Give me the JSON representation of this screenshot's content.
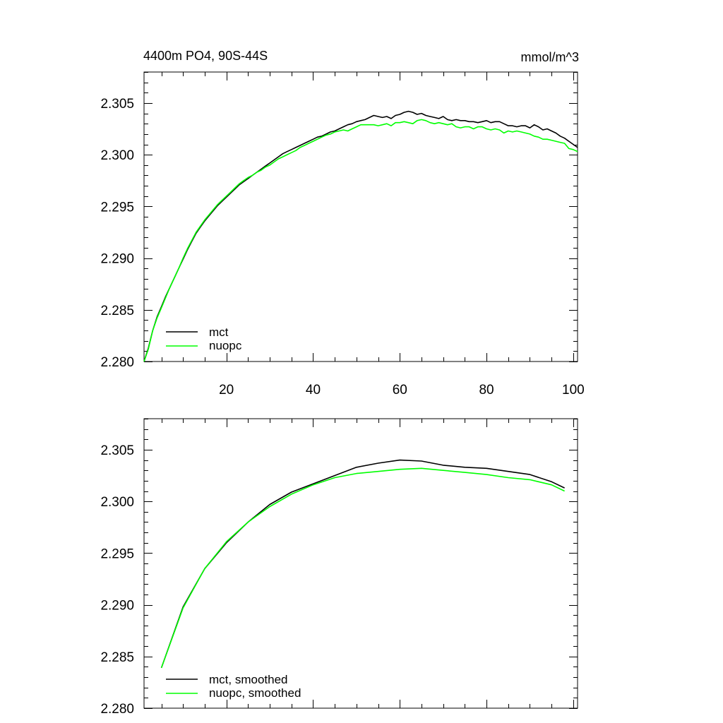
{
  "colors": {
    "mct": "#000000",
    "nuopc": "#00ff00"
  },
  "chart_data": [
    {
      "type": "line",
      "title": "4400m PO4, 90S-44S",
      "units": "mmol/m^3",
      "xlim": [
        1,
        101
      ],
      "ylim": [
        2.28,
        2.308
      ],
      "xticks": [
        "20",
        "40",
        "60",
        "80",
        "100"
      ],
      "yticks": [
        "2.280",
        "2.285",
        "2.290",
        "2.295",
        "2.300",
        "2.305"
      ],
      "legend_position": "bottom-left",
      "grid": false,
      "series": [
        {
          "name": "mct",
          "x": [
            1,
            2,
            3,
            4,
            5,
            6,
            7,
            8,
            9,
            10,
            11,
            12,
            13,
            14,
            15,
            16,
            17,
            18,
            19,
            20,
            21,
            22,
            23,
            24,
            25,
            26,
            27,
            28,
            29,
            30,
            31,
            32,
            33,
            34,
            35,
            36,
            37,
            38,
            39,
            40,
            41,
            42,
            43,
            44,
            45,
            46,
            47,
            48,
            49,
            50,
            51,
            52,
            53,
            54,
            55,
            56,
            57,
            58,
            59,
            60,
            61,
            62,
            63,
            64,
            65,
            66,
            67,
            68,
            69,
            70,
            71,
            72,
            73,
            74,
            75,
            76,
            77,
            78,
            79,
            80,
            81,
            82,
            83,
            84,
            85,
            86,
            87,
            88,
            89,
            90,
            91,
            92,
            93,
            94,
            95,
            96,
            97,
            98,
            99,
            100,
            101
          ],
          "values": [
            2.28,
            2.2813,
            2.283,
            2.2843,
            2.2853,
            2.2863,
            2.2872,
            2.2881,
            2.289,
            2.2899,
            2.2908,
            2.2916,
            2.2924,
            2.293,
            2.2936,
            2.2941,
            2.2946,
            2.2951,
            2.2955,
            2.2959,
            2.2963,
            2.2967,
            2.2971,
            2.2974,
            2.2977,
            2.298,
            2.2983,
            2.2986,
            2.2989,
            2.2992,
            2.2995,
            2.2998,
            2.3001,
            2.3003,
            2.3005,
            2.3007,
            2.3009,
            2.3011,
            2.3013,
            2.3015,
            2.3017,
            2.3018,
            2.302,
            2.3022,
            2.3023,
            2.3025,
            2.3027,
            2.3029,
            2.303,
            2.3032,
            2.3033,
            2.3034,
            2.3036,
            2.3038,
            2.3037,
            2.3036,
            2.3037,
            2.3035,
            2.3038,
            2.3039,
            2.3041,
            2.3042,
            2.3041,
            2.3039,
            2.304,
            2.3038,
            2.3037,
            2.3036,
            2.3035,
            2.3037,
            2.3034,
            2.3033,
            2.3034,
            2.3033,
            2.3033,
            2.3032,
            2.3032,
            2.3031,
            2.3032,
            2.3033,
            2.3031,
            2.3032,
            2.3032,
            2.303,
            2.3028,
            2.3028,
            2.3027,
            2.3028,
            2.3028,
            2.3026,
            2.3029,
            2.3027,
            2.3024,
            2.3025,
            2.3023,
            2.3021,
            2.3018,
            2.3016,
            2.3013,
            2.301,
            2.3007
          ]
        },
        {
          "name": "nuopc",
          "x": [
            1,
            2,
            3,
            4,
            5,
            6,
            7,
            8,
            9,
            10,
            11,
            12,
            13,
            14,
            15,
            16,
            17,
            18,
            19,
            20,
            21,
            22,
            23,
            24,
            25,
            26,
            27,
            28,
            29,
            30,
            31,
            32,
            33,
            34,
            35,
            36,
            37,
            38,
            39,
            40,
            41,
            42,
            43,
            44,
            45,
            46,
            47,
            48,
            49,
            50,
            51,
            52,
            53,
            54,
            55,
            56,
            57,
            58,
            59,
            60,
            61,
            62,
            63,
            64,
            65,
            66,
            67,
            68,
            69,
            70,
            71,
            72,
            73,
            74,
            75,
            76,
            77,
            78,
            79,
            80,
            81,
            82,
            83,
            84,
            85,
            86,
            87,
            88,
            89,
            90,
            91,
            92,
            93,
            94,
            95,
            96,
            97,
            98,
            99,
            100,
            101
          ],
          "values": [
            2.28,
            2.2812,
            2.283,
            2.2842,
            2.2852,
            2.2862,
            2.2872,
            2.2881,
            2.289,
            2.29,
            2.2909,
            2.2917,
            2.2925,
            2.2931,
            2.2937,
            2.2942,
            2.2947,
            2.2952,
            2.2956,
            2.296,
            2.2964,
            2.2968,
            2.2972,
            2.2975,
            2.2978,
            2.298,
            2.2983,
            2.2985,
            2.2988,
            2.299,
            2.2993,
            2.2996,
            2.2998,
            2.3,
            2.3002,
            2.3004,
            2.3007,
            2.3009,
            2.3011,
            2.3013,
            2.3015,
            2.3017,
            2.3019,
            2.302,
            2.3022,
            2.3023,
            2.3024,
            2.3023,
            2.3025,
            2.3027,
            2.3029,
            2.3029,
            2.3029,
            2.3029,
            2.3028,
            2.3029,
            2.303,
            2.3028,
            2.3031,
            2.3031,
            2.3032,
            2.3031,
            2.303,
            2.3033,
            2.3034,
            2.3033,
            2.3031,
            2.303,
            2.3031,
            2.303,
            2.3029,
            2.303,
            2.3027,
            2.3026,
            2.3027,
            2.3027,
            2.3025,
            2.3027,
            2.3027,
            2.3025,
            2.3024,
            2.3025,
            2.3024,
            2.3021,
            2.3023,
            2.3022,
            2.3023,
            2.3022,
            2.3021,
            2.302,
            2.3018,
            2.3017,
            2.3015,
            2.3015,
            2.3014,
            2.3013,
            2.3012,
            2.3011,
            2.3006,
            2.3005,
            2.3003
          ]
        }
      ]
    },
    {
      "type": "line",
      "xlim": [
        1,
        101
      ],
      "ylim": [
        2.28,
        2.308
      ],
      "yticks": [
        "2.280",
        "2.285",
        "2.290",
        "2.295",
        "2.300",
        "2.305"
      ],
      "legend_position": "bottom-left",
      "grid": false,
      "series": [
        {
          "name": "mct, smoothed",
          "x": [
            5,
            10,
            15,
            20,
            25,
            30,
            35,
            40,
            45,
            50,
            55,
            60,
            65,
            70,
            75,
            80,
            85,
            90,
            95,
            98
          ],
          "values": [
            2.2839,
            2.2898,
            2.2935,
            2.296,
            2.298,
            2.2997,
            2.3009,
            2.3017,
            2.3025,
            2.3033,
            2.3037,
            2.304,
            2.3039,
            2.3035,
            2.3033,
            2.3032,
            2.3029,
            2.3026,
            2.3019,
            2.3013
          ]
        },
        {
          "name": "nuopc, smoothed",
          "x": [
            5,
            10,
            15,
            20,
            25,
            30,
            35,
            40,
            45,
            50,
            55,
            60,
            65,
            70,
            75,
            80,
            85,
            90,
            95,
            98
          ],
          "values": [
            2.2839,
            2.2897,
            2.2935,
            2.2961,
            2.298,
            2.2995,
            2.3007,
            2.3016,
            2.3023,
            2.3027,
            2.3029,
            2.3031,
            2.3032,
            2.303,
            2.3028,
            2.3026,
            2.3023,
            2.3021,
            2.3016,
            2.301
          ]
        }
      ]
    }
  ]
}
